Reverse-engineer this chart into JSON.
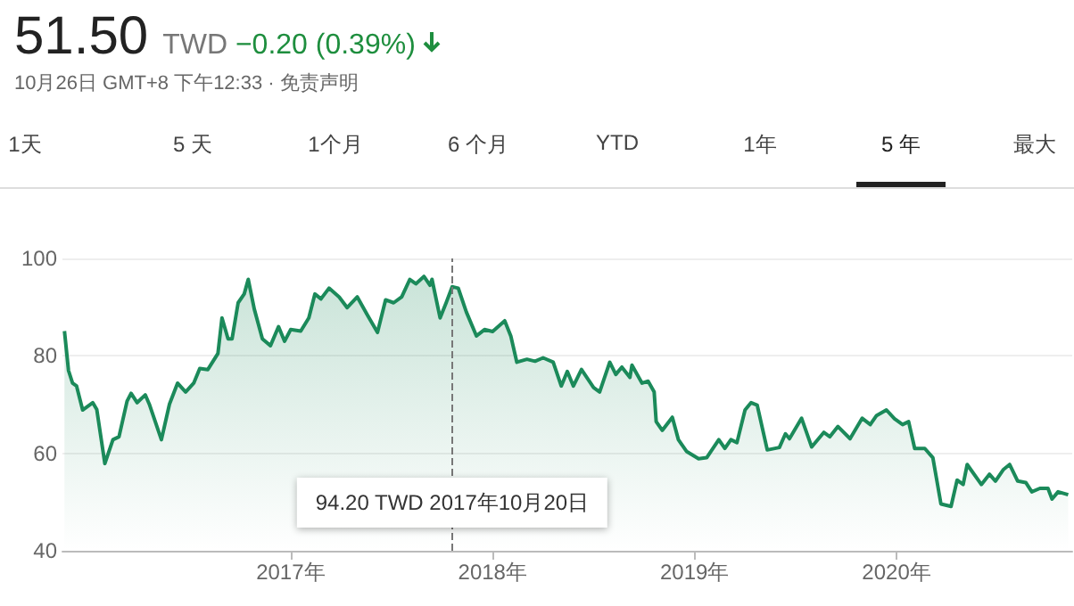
{
  "chart_data": {
    "type": "area",
    "title": "51.50",
    "subtitle": "TWD −0.20 (0.39%)",
    "annotations": [
      "10月26日 GMT+8 下午12:33 · 免责声明",
      "1天",
      "5 天",
      "1个月",
      "6 个月",
      "YTD",
      "1年",
      "5 年",
      "最大",
      "94.20 TWD  2017年10月20日"
    ],
    "x": [
      2015.88,
      2015.9,
      2015.92,
      2015.94,
      2015.97,
      2016.02,
      2016.04,
      2016.08,
      2016.12,
      2016.15,
      2016.19,
      2016.21,
      2016.24,
      2016.28,
      2016.3,
      2016.36,
      2016.4,
      2016.44,
      2016.48,
      2016.52,
      2016.55,
      2016.59,
      2016.64,
      2016.66,
      2016.69,
      2016.71,
      2016.74,
      2016.77,
      2016.79,
      2016.82,
      2016.86,
      2016.9,
      2016.94,
      2016.97,
      2017.0,
      2017.05,
      2017.09,
      2017.12,
      2017.15,
      2017.19,
      2017.24,
      2017.28,
      2017.33,
      2017.38,
      2017.43,
      2017.47,
      2017.51,
      2017.55,
      2017.59,
      2017.62,
      2017.66,
      2017.69,
      2017.7,
      2017.74,
      2017.77,
      2017.8,
      2017.83,
      2017.87,
      2017.92,
      2017.96,
      2018.0,
      2018.06,
      2018.09,
      2018.12,
      2018.17,
      2018.21,
      2018.25,
      2018.3,
      2018.34,
      2018.37,
      2018.4,
      2018.44,
      2018.5,
      2018.53,
      2018.58,
      2018.61,
      2018.64,
      2018.68,
      2018.69,
      2018.74,
      2018.77,
      2018.8,
      2018.81,
      2018.84,
      2018.89,
      2018.92,
      2018.96,
      2019.02,
      2019.06,
      2019.12,
      2019.15,
      2019.18,
      2019.21,
      2019.25,
      2019.28,
      2019.31,
      2019.36,
      2019.42,
      2019.45,
      2019.47,
      2019.53,
      2019.58,
      2019.64,
      2019.67,
      2019.71,
      2019.77,
      2019.83,
      2019.87,
      2019.9,
      2019.95,
      2019.99,
      2020.03,
      2020.06,
      2020.09,
      2020.14,
      2020.18,
      2020.22,
      2020.27,
      2020.3,
      2020.33,
      2020.35,
      2020.42,
      2020.46,
      2020.49,
      2020.53,
      2020.56,
      2020.6,
      2020.64,
      2020.67,
      2020.71,
      2020.75,
      2020.77,
      2020.8,
      2020.85
    ],
    "series": [
      {
        "color": "#1b8a5a",
        "values": [
          85.1,
          77,
          74.4,
          73.8,
          68.9,
          70.4,
          69,
          57.9,
          62.8,
          63.4,
          70.7,
          72.3,
          70.4,
          72,
          70.1,
          62.8,
          70.1,
          74.4,
          72.6,
          74.4,
          77.4,
          77.2,
          80.5,
          87.8,
          83.5,
          83.5,
          90.9,
          92.7,
          95.7,
          89.6,
          83.5,
          82.1,
          86,
          83,
          85.4,
          85.1,
          87.8,
          92.7,
          91.7,
          93.9,
          92.1,
          89.9,
          92.1,
          88.4,
          84.8,
          91.5,
          90.9,
          92.1,
          95.7,
          94.8,
          96.3,
          94.5,
          95.7,
          87.8,
          90.9,
          94.2,
          93.9,
          89,
          84.1,
          85.4,
          85,
          87.2,
          84.1,
          78.7,
          79.3,
          78.9,
          79.6,
          78.7,
          73.8,
          76.8,
          73.8,
          77.2,
          73.5,
          72.6,
          78.7,
          76.2,
          77.7,
          75.6,
          78.1,
          74.4,
          74.8,
          72.6,
          66.5,
          64.7,
          67.4,
          62.8,
          60.4,
          58.9,
          59.1,
          62.8,
          61,
          62.8,
          62.2,
          68.9,
          70.4,
          69.9,
          60.7,
          61.2,
          64,
          63,
          67.2,
          61.3,
          64.3,
          63.4,
          65.5,
          63,
          67.2,
          65.9,
          67.7,
          68.9,
          67.1,
          65.9,
          66.5,
          61,
          61,
          59.1,
          49.6,
          49.1,
          54.5,
          53.6,
          57.7,
          53.6,
          55.7,
          54.3,
          56.7,
          57.7,
          54.3,
          54,
          52.1,
          52.8,
          52.8,
          50.6,
          52.1,
          51.5
        ]
      }
    ],
    "xlim": [
      2015.87,
      2020.87
    ],
    "xticks": [
      {
        "value": 2017,
        "label": "2017年"
      },
      {
        "value": 2018,
        "label": "2018年"
      },
      {
        "value": 2019,
        "label": "2019年"
      },
      {
        "value": 2020,
        "label": "2020年"
      }
    ],
    "ylim": [
      40,
      100
    ],
    "yticks": [
      40,
      60,
      80,
      100
    ],
    "ref_lines": [
      {
        "axis": "x",
        "value": 2017.8,
        "color": "#777777",
        "line_style": "dashed"
      }
    ],
    "grid": "y",
    "marker": "none",
    "line_style": "solid"
  }
}
